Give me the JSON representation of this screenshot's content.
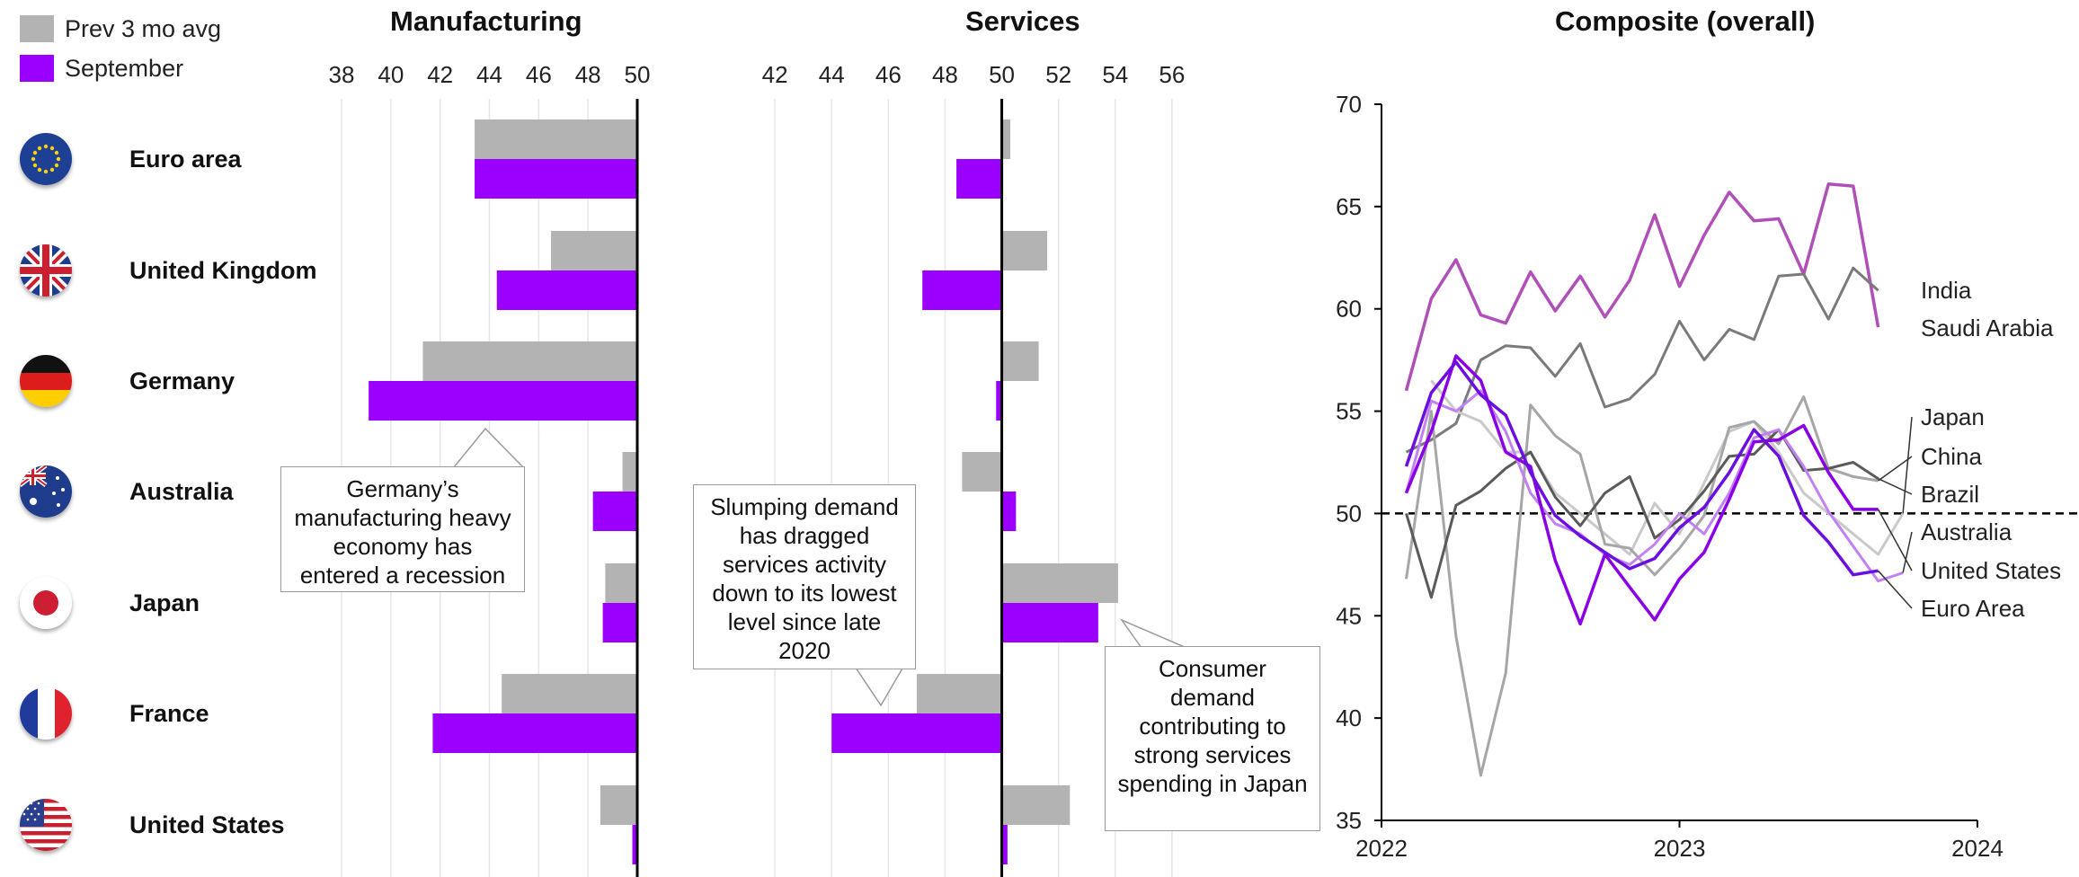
{
  "legend": {
    "items": [
      {
        "label": "Prev 3 mo avg",
        "color": "#b3b3b3"
      },
      {
        "label": "September",
        "color": "#9b00ff"
      }
    ]
  },
  "countries": [
    "Euro area",
    "United Kingdom",
    "Germany",
    "Australia",
    "Japan",
    "France",
    "United States"
  ],
  "flags": [
    "euro-flag-icon",
    "uk-flag-icon",
    "germany-flag-icon",
    "australia-flag-icon",
    "japan-flag-icon",
    "france-flag-icon",
    "usa-flag-icon"
  ],
  "annotations": {
    "germany": "Germany’s manufacturing heavy economy has entered a recession",
    "services_slump": "Slumping demand has dragged services activity down to its lowest level since late 2020",
    "japan_services": "Consumer demand contributing to strong services spending in Japan"
  },
  "chart_data": [
    {
      "type": "bar",
      "title": "Manufacturing",
      "xlim": [
        38,
        50
      ],
      "ticks": [
        38,
        40,
        42,
        44,
        46,
        48,
        50
      ],
      "baseline": 50,
      "categories": [
        "Euro area",
        "United Kingdom",
        "Germany",
        "Australia",
        "Japan",
        "France",
        "United States"
      ],
      "series": [
        {
          "name": "Prev 3 mo avg",
          "color": "#b3b3b3",
          "values": [
            43.4,
            46.5,
            41.3,
            49.4,
            48.7,
            44.5,
            48.5
          ]
        },
        {
          "name": "September",
          "color": "#9b00ff",
          "values": [
            43.4,
            44.3,
            39.1,
            48.2,
            48.6,
            41.7,
            49.8
          ]
        }
      ],
      "grid": true
    },
    {
      "type": "bar",
      "title": "Services",
      "xlim": [
        40,
        58
      ],
      "ticks": [
        42,
        44,
        46,
        48,
        50,
        52,
        54,
        56
      ],
      "baseline": 50,
      "categories": [
        "Euro area",
        "United Kingdom",
        "Germany",
        "Australia",
        "Japan",
        "France",
        "United States"
      ],
      "series": [
        {
          "name": "Prev 3 mo avg",
          "color": "#b3b3b3",
          "values": [
            50.3,
            51.6,
            51.3,
            48.6,
            54.1,
            47.0,
            52.4
          ]
        },
        {
          "name": "September",
          "color": "#9b00ff",
          "values": [
            48.4,
            47.2,
            49.8,
            50.5,
            53.4,
            44.0,
            50.2
          ]
        }
      ],
      "grid": true
    },
    {
      "type": "line",
      "title": "Composite (overall)",
      "xlim": [
        2022,
        2024
      ],
      "ylim": [
        35,
        70
      ],
      "xticks": [
        2022,
        2023,
        2024
      ],
      "yticks": [
        35,
        40,
        45,
        50,
        55,
        60,
        65,
        70
      ],
      "reference_line": 50,
      "x": [
        2022.083,
        2022.167,
        2022.25,
        2022.333,
        2022.417,
        2022.5,
        2022.583,
        2022.667,
        2022.75,
        2022.833,
        2022.917,
        2023.0,
        2023.083,
        2023.167,
        2023.25,
        2023.333,
        2023.417,
        2023.5,
        2023.583,
        2023.667,
        2023.75
      ],
      "series": [
        {
          "name": "India",
          "color": "#b04fb8",
          "width": 3.5,
          "values": [
            56,
            60.5,
            62.4,
            59.7,
            59.3,
            61.8,
            59.9,
            61.6,
            59.6,
            61.4,
            64.6,
            61.1,
            63.6,
            65.7,
            64.3,
            64.4,
            61.7,
            66.1,
            66,
            59.1,
            null
          ]
        },
        {
          "name": "Saudi Arabia",
          "color": "#7a7a7a",
          "width": 3,
          "values": [
            53,
            53.6,
            54.4,
            57.5,
            58.2,
            58.1,
            56.7,
            58.3,
            55.2,
            55.6,
            56.8,
            59.4,
            57.5,
            59,
            58.5,
            61.6,
            61.7,
            59.5,
            62,
            60.9,
            null
          ]
        },
        {
          "name": "Japan",
          "color": "#c9c9c9",
          "width": 3,
          "values": [
            null,
            56.5,
            55,
            54.5,
            53,
            53,
            51,
            50,
            49,
            48,
            50.5,
            49,
            51.5,
            54,
            54.5,
            53,
            51,
            50,
            49,
            48,
            50
          ]
        },
        {
          "name": "China",
          "color": "#a6a6a6",
          "width": 3,
          "values": [
            46.8,
            55,
            44,
            37.2,
            42.2,
            55.3,
            53.8,
            52.9,
            48.5,
            48.3,
            47,
            48.3,
            49.9,
            54.2,
            54.5,
            53.4,
            55.7,
            52.2,
            51.8,
            51.6,
            null
          ]
        },
        {
          "name": "Brazil",
          "color": "#5a5a5a",
          "width": 3,
          "values": [
            50,
            45.9,
            50.4,
            51.1,
            52.2,
            53,
            50.8,
            49.4,
            51,
            51.8,
            48.8,
            49.7,
            51.1,
            52.8,
            52.9,
            54.1,
            52.1,
            52.2,
            52.5,
            51.7,
            null
          ]
        },
        {
          "name": "Australia",
          "color": "#c281f2",
          "width": 3,
          "values": [
            51,
            55.5,
            55,
            56,
            54,
            51,
            49.5,
            49,
            48,
            47.5,
            48.5,
            50,
            49,
            51,
            53.7,
            54.1,
            52.3,
            50.1,
            48.4,
            46.7,
            47.1
          ]
        },
        {
          "name": "United States",
          "color": "#8a00e6",
          "width": 3.5,
          "values": [
            51,
            54,
            57.7,
            56.5,
            53,
            52.3,
            47.7,
            44.6,
            48,
            46.4,
            44.8,
            46.8,
            48.1,
            50.7,
            53.5,
            53.6,
            54.3,
            52,
            50.2,
            50.2,
            null
          ]
        },
        {
          "name": "Euro Area",
          "color": "#6a0fe0",
          "width": 3.5,
          "values": [
            52.3,
            55.9,
            57.4,
            55.8,
            54.8,
            52,
            49.9,
            48.9,
            48.1,
            47.3,
            47.8,
            49.3,
            50.3,
            52,
            54.1,
            52.8,
            49.9,
            48.6,
            47,
            47.2,
            null
          ]
        }
      ]
    }
  ]
}
